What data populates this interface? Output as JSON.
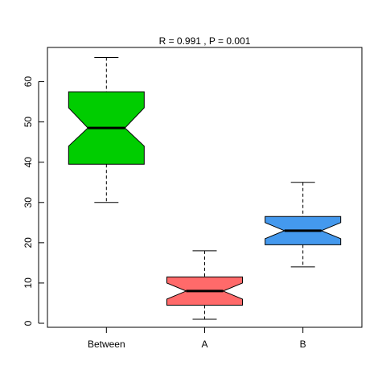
{
  "chart_data": {
    "type": "boxplot",
    "title": "R =  0.991 ,  P =  0.001",
    "xlabel": "",
    "ylabel": "",
    "categories": [
      "Between",
      "A",
      "B"
    ],
    "boxes": [
      {
        "name": "Between",
        "whisker_low": 30,
        "q1": 39.5,
        "median": 48.5,
        "q3": 57.5,
        "whisker_high": 66,
        "notch_low": 44,
        "notch_high": 53.5,
        "color": "#00CD00"
      },
      {
        "name": "A",
        "whisker_low": 1,
        "q1": 4.5,
        "median": 8,
        "q3": 11.5,
        "whisker_high": 18,
        "notch_low": 6,
        "notch_high": 10,
        "color": "#FF6A6A"
      },
      {
        "name": "B",
        "whisker_low": 14,
        "q1": 19.5,
        "median": 23,
        "q3": 26.5,
        "whisker_high": 35,
        "notch_low": 21,
        "notch_high": 25,
        "color": "#4499EE"
      }
    ],
    "notched": true,
    "ylim": [
      -1,
      68.5
    ],
    "yticks": [
      0,
      10,
      20,
      30,
      40,
      50,
      60
    ],
    "grid": false,
    "legend": "none"
  }
}
